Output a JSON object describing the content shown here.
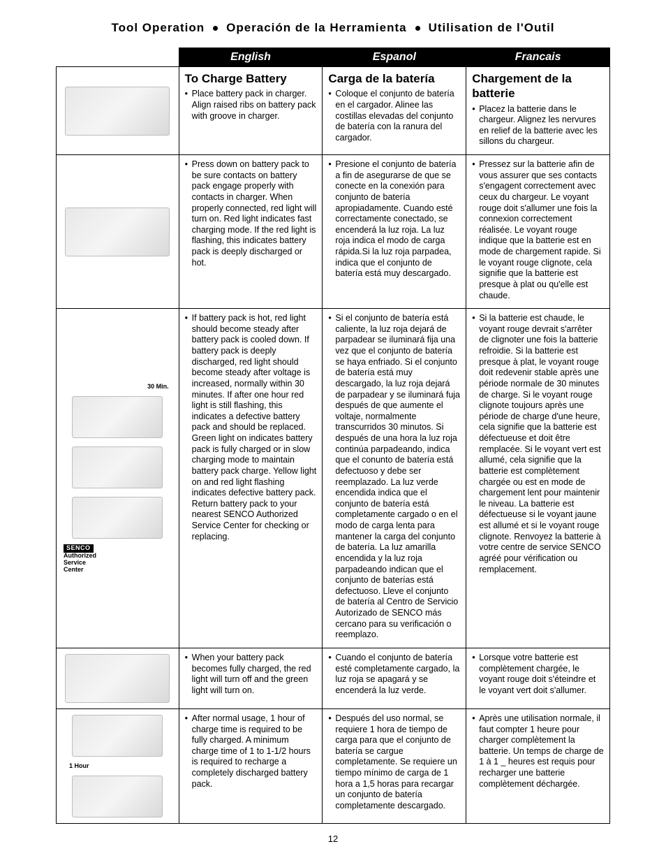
{
  "header": {
    "parts": [
      "Tool Operation",
      "Operación de la Herramienta",
      "Utilisation de l'Outil"
    ]
  },
  "columns": {
    "en": "English",
    "es": "Espanol",
    "fr": "Francais"
  },
  "rows": [
    {
      "img_label": "",
      "en_title": "To Charge Battery",
      "es_title": "Carga de la batería",
      "fr_title": "Chargement de la batterie",
      "en": [
        "Place battery pack in charger. Align raised ribs on battery pack with groove in charger."
      ],
      "es": [
        "Coloque el conjunto de batería en el cargador. Alinee las costillas elevadas del conjunto de batería con la ranura del cargador."
      ],
      "fr": [
        "Placez la batterie dans le chargeur. Alignez les nervures en relief de la batterie avec les sillons du chargeur."
      ]
    },
    {
      "img_label": "",
      "en": [
        "Press down on battery pack to be sure contacts on battery pack engage properly with contacts in charger. When properly connected, red light will turn on. Red light indicates fast charging mode. If the red light is flashing, this indicates battery pack is deeply discharged or hot."
      ],
      "es": [
        "Presione el conjunto de batería a fin de asegurarse de que se conecte en la conexión para conjunto de batería apropiadamente. Cuando esté correctamente conectado, se encenderá la luz roja. La luz roja indica el modo de carga rápida.Si la luz roja parpadea, indica que el conjunto de batería está muy descargado."
      ],
      "fr": [
        "Pressez sur la batterie afin de vous assurer que ses contacts s'engagent correctement avec ceux du chargeur. Le voyant rouge doit s'allumer une fois la connexion correctement réalisée. Le voyant rouge indique que la batterie est en mode de chargement rapide. Si le voyant rouge clignote, cela signifie que la batterie est presque à plat ou qu'elle est chaude."
      ]
    },
    {
      "img_label": "30 Min.",
      "side_label_html": "<span class='senco-tag'>SENCO</span><br>Authorized<br>Service<br>Center",
      "en": [
        "If battery pack is hot, red light should become steady after battery pack is cooled down. If battery pack is deeply discharged, red light should become steady after voltage is increased, normally within 30 minutes. If after one hour red light is still flashing, this indicates a defective battery pack and should be replaced. Green light on indicates battery pack is fully charged or in slow charging mode to maintain battery pack charge. Yellow light on and red light flashing indicates defective battery pack. Return battery pack to your nearest SENCO Authorized Service Center for checking or replacing."
      ],
      "es": [
        "Si el conjunto de batería está caliente, la luz roja dejará de parpadear se iluminará fija una vez que el conjunto de batería se haya enfriado. Si el conjunto de batería está muy descargado, la luz roja dejará de parpadear y se iluminará fuja después de que aumente el voltaje, normalmente transcurridos 30 minutos. Si después de una hora la luz roja continúa parpadeando, indica que el conunto de batería está defectuoso y debe ser reemplazado. La luz verde encendida indica que el conjunto de batería está completamente cargado o en el modo de carga lenta para mantener la carga del conjunto de batería. La luz amarilla encendida y la luz roja parpadeando indican que el conjunto de baterías está defectuoso. Lleve el conjunto de batería al Centro de Servicio Autorizado de SENCO más cercano para su verificación o reemplazo."
      ],
      "fr": [
        "Si la batterie est chaude, le voyant rouge devrait s'arrêter de clignoter une fois la batterie refroidie. Si la batterie est presque à plat, le voyant rouge doit redevenir stable après une période normale de 30 minutes de charge. Si le voyant rouge clignote toujours après une période de charge d'une heure, cela signifie que la batterie est défectueuse et doit être remplacée. Si le voyant vert est allumé, cela signifie que la batterie est complètement chargée ou est en mode de chargement lent pour maintenir le niveau. La batterie est défectueuse si le voyant jaune est allumé et si le voyant rouge clignote. Renvoyez la batterie à votre centre de service SENCO agréé pour vérification ou remplacement."
      ]
    },
    {
      "img_label": "",
      "en": [
        "When your battery pack becomes fully charged, the red light will turn off and the green light will turn on."
      ],
      "es": [
        "Cuando el conjunto de batería esté completamente cargado, la luz roja se apagará y se encenderá la luz verde."
      ],
      "fr": [
        "Lorsque votre batterie est complètement chargée, le voyant rouge doit s'éteindre et le voyant vert doit s'allumer."
      ]
    },
    {
      "img_label": "1 Hour",
      "en": [
        "After normal usage, 1 hour of charge time is required to be fully charged. A minimum charge time of 1 to 1-1/2 hours is required to recharge a completely discharged battery pack."
      ],
      "es": [
        "Después del uso normal, se requiere 1 hora de tiempo de carga para que el conjunto de batería se cargue completamente. Se requiere un tiempo mínimo de carga de 1 hora a 1,5 horas para recargar un conjunto de batería completamente descargado."
      ],
      "fr": [
        "Après une utilisation normale, il faut compter 1 heure pour charger complètement la batterie. Un temps de charge de 1 à 1 _ heures est requis pour recharger une batterie complètement déchargée."
      ]
    }
  ],
  "page_number": "12"
}
